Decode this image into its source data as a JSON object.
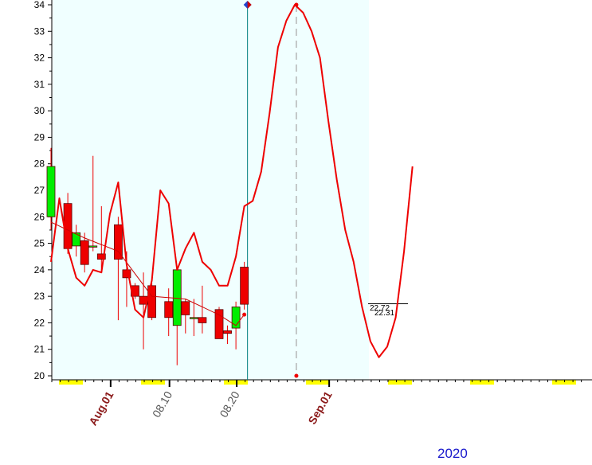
{
  "chart_data": {
    "type": "candlestick",
    "title": "",
    "xlabel": "",
    "ylabel": "",
    "ylim": [
      20,
      34
    ],
    "yticks": [
      20,
      21,
      22,
      23,
      24,
      25,
      26,
      27,
      28,
      29,
      30,
      31,
      32,
      33,
      34
    ],
    "grid": false,
    "year_label": "2020",
    "x_tick_labels": [
      {
        "label": "Aug.01",
        "index": 7,
        "style": "month"
      },
      {
        "label": "08.10",
        "index": 14,
        "style": "day"
      },
      {
        "label": "08.20",
        "index": 22,
        "style": "day"
      },
      {
        "label": "Sep.01",
        "index": 33,
        "style": "month"
      }
    ],
    "candles": [
      {
        "index": 0,
        "open": 26.0,
        "high": 28.6,
        "low": 25.5,
        "close": 27.9
      },
      {
        "index": 2,
        "open": 26.5,
        "high": 26.9,
        "low": 24.6,
        "close": 24.8
      },
      {
        "index": 3,
        "open": 24.9,
        "high": 25.7,
        "low": 24.5,
        "close": 25.4
      },
      {
        "index": 4,
        "open": 25.1,
        "high": 25.4,
        "low": 23.9,
        "close": 24.2
      },
      {
        "index": 5,
        "open": 24.9,
        "high": 28.3,
        "low": 24.7,
        "close": 24.9
      },
      {
        "index": 6,
        "open": 24.6,
        "high": 26.4,
        "low": 24.0,
        "close": 24.4
      },
      {
        "index": 8,
        "open": 25.7,
        "high": 26.0,
        "low": 22.1,
        "close": 24.4
      },
      {
        "index": 9,
        "open": 24.0,
        "high": 24.7,
        "low": 22.6,
        "close": 23.7
      },
      {
        "index": 10,
        "open": 23.4,
        "high": 23.5,
        "low": 22.9,
        "close": 23.0
      },
      {
        "index": 11,
        "open": 23.0,
        "high": 23.9,
        "low": 21.0,
        "close": 22.7
      },
      {
        "index": 12,
        "open": 23.4,
        "high": 23.5,
        "low": 22.1,
        "close": 22.2
      },
      {
        "index": 14,
        "open": 22.8,
        "high": 23.3,
        "low": 21.5,
        "close": 22.2
      },
      {
        "index": 15,
        "open": 21.9,
        "high": 24.0,
        "low": 20.4,
        "close": 24.0
      },
      {
        "index": 16,
        "open": 22.8,
        "high": 22.9,
        "low": 21.6,
        "close": 22.3
      },
      {
        "index": 17,
        "open": 22.2,
        "high": 22.9,
        "low": 21.5,
        "close": 22.2
      },
      {
        "index": 18,
        "open": 22.2,
        "high": 23.4,
        "low": 21.6,
        "close": 22.0
      },
      {
        "index": 20,
        "open": 22.5,
        "high": 22.6,
        "low": 21.5,
        "close": 21.4
      },
      {
        "index": 21,
        "open": 21.7,
        "high": 21.9,
        "low": 21.2,
        "close": 21.6
      },
      {
        "index": 22,
        "open": 21.8,
        "high": 22.8,
        "low": 21.0,
        "close": 22.6
      },
      {
        "index": 23,
        "open": 24.1,
        "high": 24.3,
        "low": 22.5,
        "close": 22.7
      }
    ],
    "series": [
      {
        "role": "moving-average",
        "color": "#cc0000",
        "points": [
          [
            0,
            25.8
          ],
          [
            4,
            25.2
          ],
          [
            8,
            24.7
          ],
          [
            12,
            23.0
          ],
          [
            16,
            22.9
          ],
          [
            20,
            22.3
          ],
          [
            22,
            21.9
          ],
          [
            23,
            22.31
          ]
        ]
      },
      {
        "role": "projection-curve",
        "color": "#ee0000",
        "points": [
          [
            0,
            24.3
          ],
          [
            1,
            26.7
          ],
          [
            2,
            24.8
          ],
          [
            3,
            23.7
          ],
          [
            4,
            23.4
          ],
          [
            5,
            24.0
          ],
          [
            6,
            23.9
          ],
          [
            7,
            26.1
          ],
          [
            8,
            27.3
          ],
          [
            9,
            24.2
          ],
          [
            10,
            22.5
          ],
          [
            11,
            22.2
          ],
          [
            12,
            23.6
          ],
          [
            13,
            27.0
          ],
          [
            14,
            26.5
          ],
          [
            15,
            24.0
          ],
          [
            16,
            24.8
          ],
          [
            17,
            25.4
          ],
          [
            18,
            24.3
          ],
          [
            19,
            24.0
          ],
          [
            20,
            23.4
          ],
          [
            21,
            23.4
          ],
          [
            22,
            24.5
          ],
          [
            23,
            26.4
          ],
          [
            24,
            26.6
          ],
          [
            25,
            27.7
          ],
          [
            26,
            29.9
          ],
          [
            27,
            32.4
          ],
          [
            28,
            33.4
          ],
          [
            29,
            34.0
          ],
          [
            30,
            33.7
          ],
          [
            31,
            33.0
          ],
          [
            32,
            32.0
          ],
          [
            33,
            29.6
          ],
          [
            34,
            27.4
          ],
          [
            35,
            25.5
          ],
          [
            36,
            24.3
          ],
          [
            37,
            22.6
          ],
          [
            38,
            21.3
          ],
          [
            39,
            20.7
          ],
          [
            40,
            21.1
          ],
          [
            41,
            22.2
          ],
          [
            42,
            24.7
          ],
          [
            43,
            27.9
          ]
        ]
      }
    ],
    "price_labels": [
      "22.72",
      "22.31"
    ],
    "reference_price": 22.72,
    "current_index": 23,
    "peak_index": 29,
    "colors": {
      "up": "#00ee00",
      "down": "#ee0000",
      "history_background": "#f0ffff",
      "axis": "#000000",
      "current_line": "#008080",
      "peak_line": "#b0b0b0",
      "weekend_marker": "#ffff00",
      "year_label": "#1a1acc"
    }
  }
}
